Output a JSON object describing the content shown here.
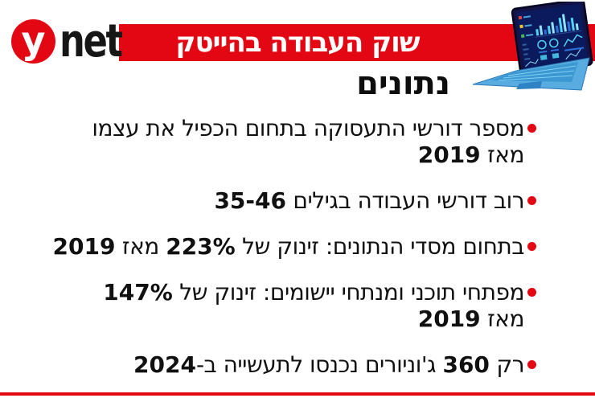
{
  "logo": {
    "y_label": "y",
    "net_label": "net"
  },
  "banner": {
    "title": "שוק העבודה בהייטק"
  },
  "section": {
    "heading": "נתונים"
  },
  "bullets": [
    {
      "lines": [
        [
          {
            "t": "מספר דורשי התעסוקה בתחום הכפיל את עצמו"
          }
        ],
        [
          {
            "t": "מאז "
          },
          {
            "t": "2019",
            "b": true
          }
        ]
      ]
    },
    {
      "lines": [
        [
          {
            "t": "רוב דורשי העבודה בגילים "
          },
          {
            "t": "35-46",
            "b": true
          }
        ]
      ]
    },
    {
      "lines": [
        [
          {
            "t": "בתחום מסדי הנתונים: זינוק של "
          },
          {
            "t": "223%",
            "b": true
          },
          {
            "t": " מאז "
          },
          {
            "t": "2019",
            "b": true
          }
        ]
      ]
    },
    {
      "lines": [
        [
          {
            "t": "מפתחי תוכני ומנתחי יישומים: זינוק של "
          },
          {
            "t": "147%",
            "b": true
          }
        ],
        [
          {
            "t": "מאז "
          },
          {
            "t": "2019",
            "b": true
          }
        ]
      ]
    },
    {
      "lines": [
        [
          {
            "t": "רק "
          },
          {
            "t": "360",
            "b": true
          },
          {
            "t": " ג'וניורים נכנסו לתעשייה ב-"
          },
          {
            "t": "2024",
            "b": true
          }
        ]
      ]
    }
  ],
  "colors": {
    "brand_red": "#e30613"
  },
  "illustration": {
    "name": "laptop-with-charts"
  }
}
